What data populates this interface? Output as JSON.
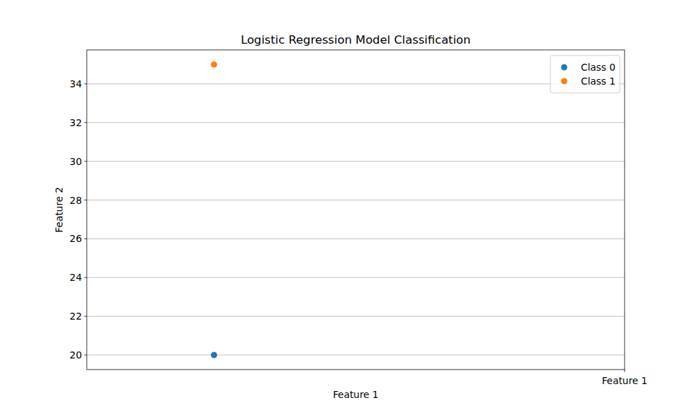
{
  "chart_data": {
    "type": "scatter",
    "title": "Logistic Regression Model Classification",
    "x_label": "Feature 1",
    "y_label": "Feature 2",
    "series": [
      {
        "name": "Class 0",
        "color": "#1f77b4",
        "marker": "circle",
        "x": [
          0
        ],
        "values": [
          20
        ]
      },
      {
        "name": "Class 1",
        "color": "#ff7f0e",
        "marker": "circle",
        "x": [
          0
        ],
        "values": [
          35
        ]
      }
    ],
    "xlim": [
      -0.31,
      1
    ],
    "xticks": [
      {
        "value": 1,
        "label": "Feature 1"
      }
    ],
    "ylim": [
      19.25,
      35.75
    ],
    "yticks": [
      20,
      22,
      24,
      26,
      28,
      30,
      32,
      34
    ],
    "grid": "y",
    "legend": "upper right"
  }
}
